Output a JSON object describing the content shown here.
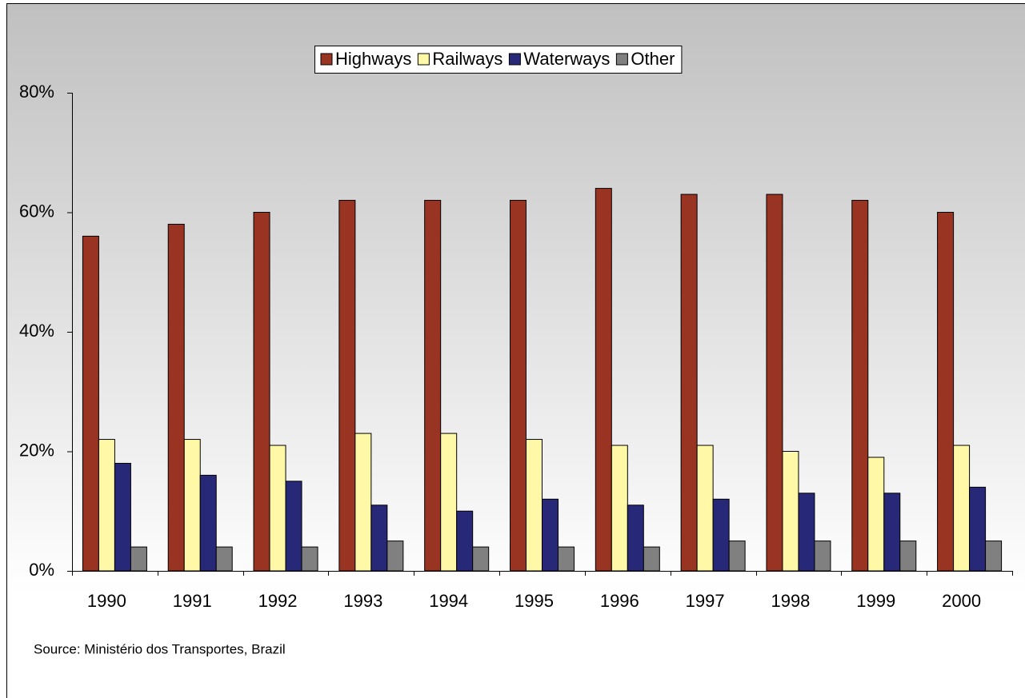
{
  "chart_data": {
    "type": "bar",
    "categories": [
      "1990",
      "1991",
      "1992",
      "1993",
      "1994",
      "1995",
      "1996",
      "1997",
      "1998",
      "1999",
      "2000"
    ],
    "series": [
      {
        "name": "Highways",
        "color": "#993322",
        "values": [
          56,
          58,
          60,
          62,
          62,
          62,
          64,
          63,
          63,
          62,
          60
        ]
      },
      {
        "name": "Railways",
        "color": "#fff8a6",
        "values": [
          22,
          22,
          21,
          23,
          23,
          22,
          21,
          21,
          20,
          19,
          21
        ]
      },
      {
        "name": "Waterways",
        "color": "#282878",
        "values": [
          18,
          16,
          15,
          11,
          10,
          12,
          11,
          12,
          13,
          13,
          14
        ]
      },
      {
        "name": "Other",
        "color": "#808080",
        "values": [
          4,
          4,
          4,
          5,
          4,
          4,
          4,
          5,
          5,
          5,
          5
        ]
      }
    ],
    "ylim": [
      0,
      80
    ],
    "yticks": [
      {
        "value": 0,
        "label": "0%"
      },
      {
        "value": 20,
        "label": "20%"
      },
      {
        "value": 40,
        "label": "40%"
      },
      {
        "value": 60,
        "label": "60%"
      },
      {
        "value": 80,
        "label": "80%"
      }
    ],
    "legend": "top",
    "source": "Source: Ministério dos Transportes, Brazil"
  }
}
